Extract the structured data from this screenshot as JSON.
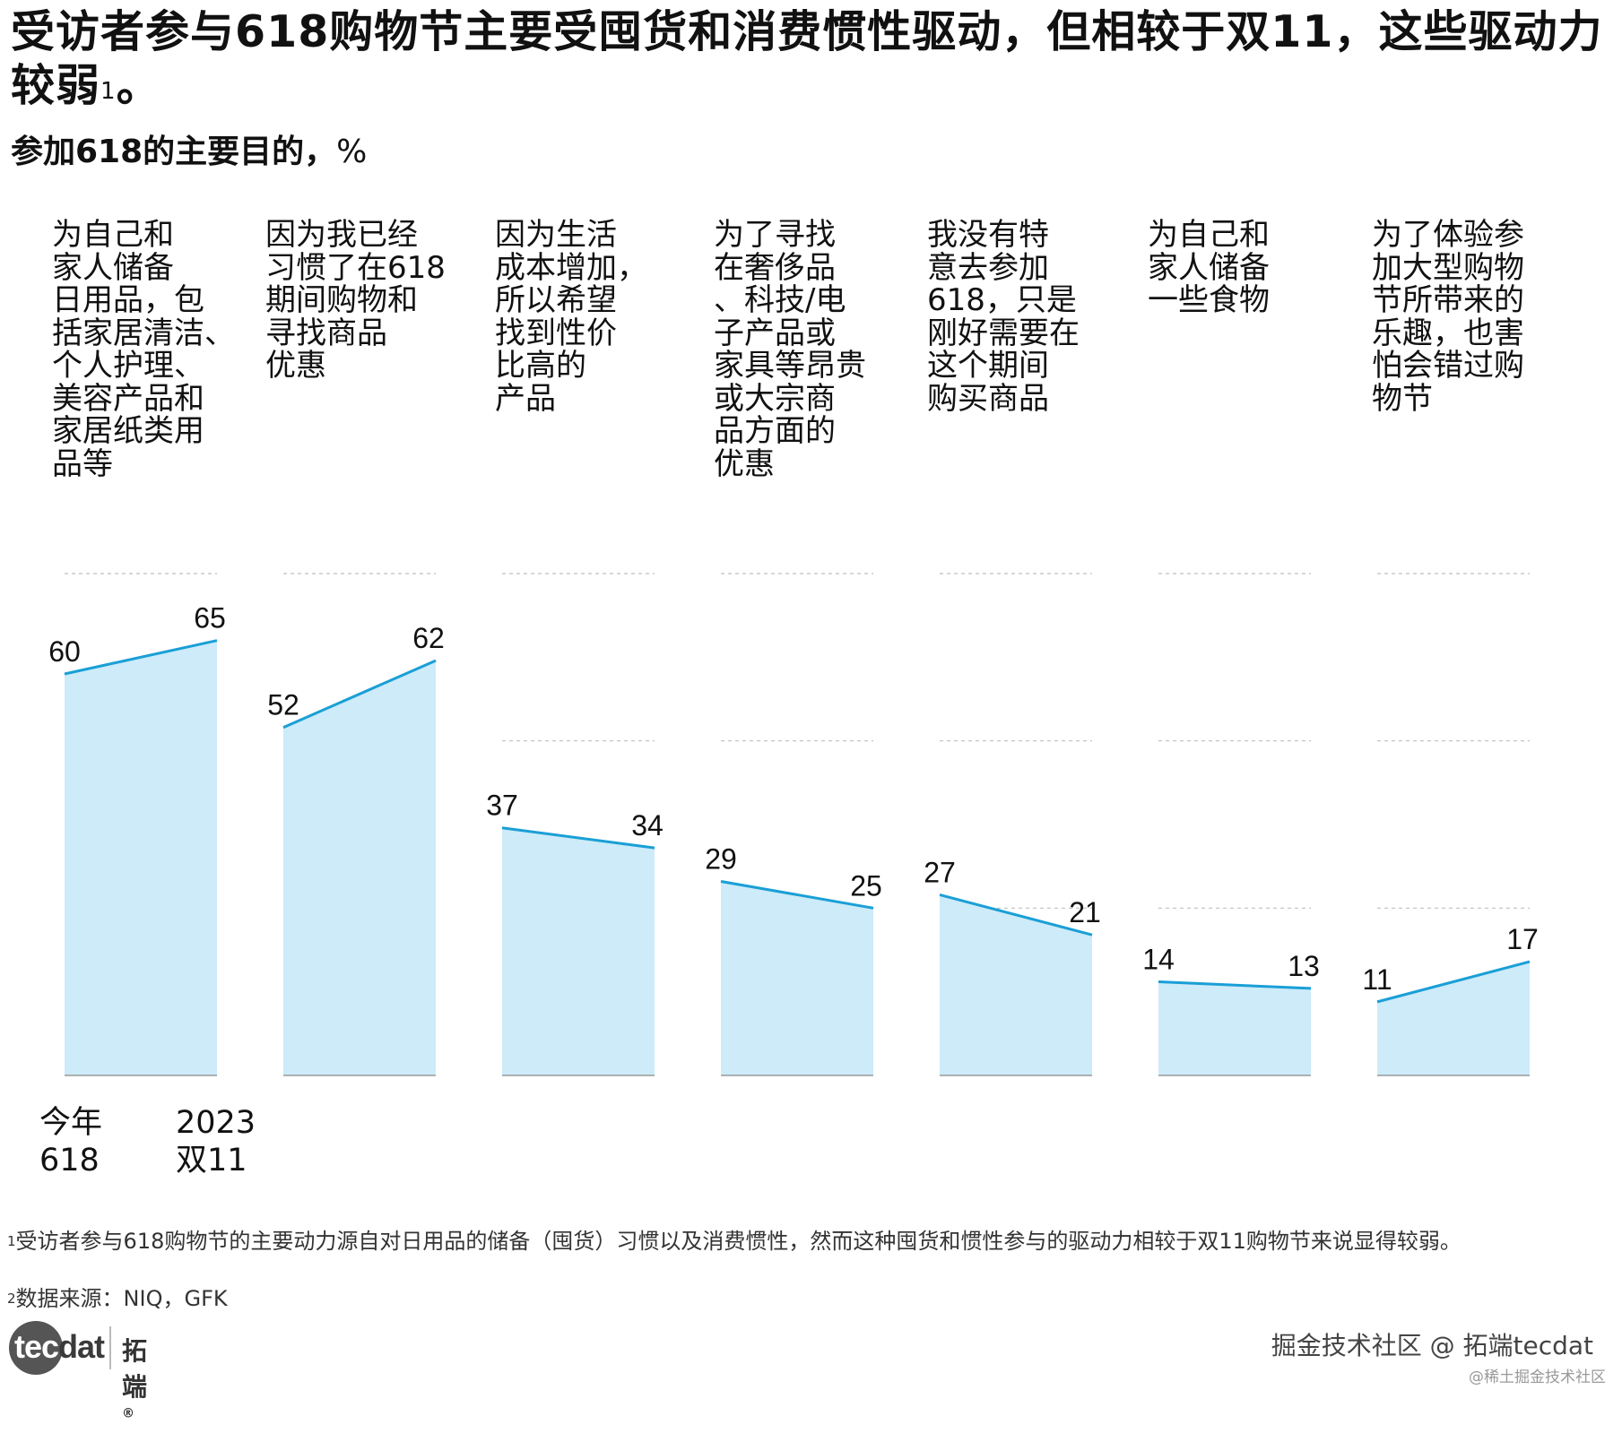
{
  "title": "受访者参与618购物节主要受囤货和消费惯性驱动，但相较于双11，这些驱动力较弱",
  "title_sup": "1",
  "title_end": "。",
  "subtitle": {
    "bold": "参加618的主要目的，",
    "unit": "%"
  },
  "colors": {
    "fill": "#cdebf9",
    "line": "#1a9fd6",
    "grid": "#bfbfbf",
    "baseline": "#9a9a9a"
  },
  "chart_data": {
    "type": "area",
    "series_names": [
      "今年618",
      "2023双11"
    ],
    "legend": [
      "今年\n618",
      "2023\n双11"
    ],
    "ylim": [
      0,
      75
    ],
    "gridlines": [
      25,
      50,
      75
    ],
    "categories": [
      "为自己和家人储备日用品，包括家居清洁、个人护理、美容产品和家居纸类用品等",
      "因为我已经习惯了在618期间购物和寻找商品优惠",
      "因为生活成本增加，所以希望找到性价比高的产品",
      "为了寻找在奢侈品、科技/电子产品或家具等昂贵或大宗商品方面的优惠",
      "我没有特意去参加618，只是刚好需要在这个期间购买商品",
      "为自己和家人储备一些食物",
      "为了体验参加大型购物节所带来的乐趣，也害怕会错过购物节"
    ],
    "values_618": [
      60,
      52,
      37,
      29,
      27,
      14,
      11
    ],
    "values_double11": [
      65,
      62,
      34,
      25,
      21,
      13,
      17
    ]
  },
  "category_lines": [
    [
      "为自己和",
      "家人储备",
      "日用品，包",
      "括家居清洁、",
      "个人护理、",
      "美容产品和",
      "家居纸类用",
      "品等"
    ],
    [
      "因为我已经",
      "习惯了在618",
      "期间购物和",
      "寻找商品",
      "优惠"
    ],
    [
      "因为生活",
      "成本增加，",
      "所以希望",
      "找到性价",
      "比高的",
      "产品"
    ],
    [
      "为了寻找",
      "在奢侈品",
      "、科技/电",
      "子产品或",
      "家具等昂贵",
      "或大宗商",
      "品方面的",
      "优惠"
    ],
    [
      "我没有特",
      "意去参加",
      "618，只是",
      "刚好需要在",
      "这个期间",
      "购买商品"
    ],
    [
      "为自己和",
      "家人储备",
      "一些食物"
    ],
    [
      "为了体验参",
      "加大型购物",
      "节所带来的",
      "乐趣，也害",
      "怕会错过购",
      "物节"
    ]
  ],
  "legend_left": [
    "今年",
    "618"
  ],
  "legend_right": [
    "2023",
    "双11"
  ],
  "footnotes": {
    "f1_sup": "1",
    "f1": "受访者参与618购物节的主要动力源自对日用品的储备（囤货）习惯以及消费惯性，然而这种囤货和惯性参与的驱动力相较于双11购物节来说显得较弱。",
    "f2_sup": "2",
    "f2": "数据来源：NIQ，GFK"
  },
  "logo": {
    "text_a": "tec",
    "text_b": "dat",
    "cn": "拓端",
    "reg": "®"
  },
  "watermark": {
    "main": "掘金技术社区 @ 拓端tecdat",
    "small": "@稀土掘金技术社区"
  }
}
